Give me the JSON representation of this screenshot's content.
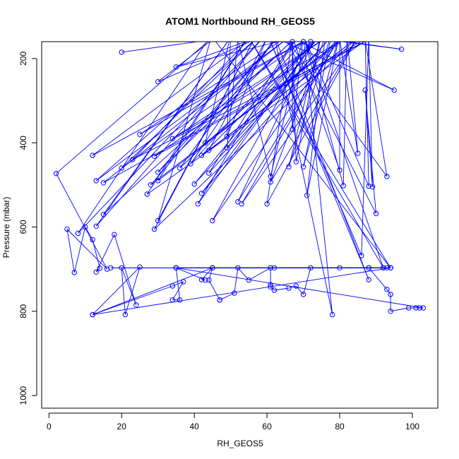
{
  "chart_data": {
    "type": "line",
    "title": "ATOM1 Northbound RH_GEOS5",
    "xlabel": "RH_GEOS5",
    "ylabel": "Pressure (mbar)",
    "xlim": [
      -2,
      107
    ],
    "ylim": [
      1030,
      160
    ],
    "y_axis_reversed": true,
    "grid": false,
    "line_color": "#0000ff",
    "marker": "open-circle",
    "x_ticks": [
      0,
      20,
      40,
      60,
      80,
      100
    ],
    "y_ticks": [
      200,
      400,
      600,
      800,
      1000
    ],
    "x_tick_labels": [
      "0",
      "20",
      "40",
      "60",
      "80",
      "100"
    ],
    "y_tick_labels": [
      "200",
      "400",
      "600",
      "800",
      "1000"
    ],
    "series": [
      {
        "values": [
          [
            20,
            185
          ],
          [
            45,
            155
          ],
          [
            30,
            255
          ],
          [
            62,
            135
          ],
          [
            35,
            220
          ],
          [
            70,
            145
          ],
          [
            97,
            178
          ],
          [
            58,
            135
          ],
          [
            95,
            275
          ],
          [
            66,
            145
          ],
          [
            25,
            380
          ],
          [
            72,
            150
          ],
          [
            12,
            430
          ],
          [
            55,
            155
          ],
          [
            23,
            440
          ],
          [
            88,
            155
          ],
          [
            29,
            432
          ],
          [
            78,
            140
          ],
          [
            34,
            390
          ],
          [
            82,
            150
          ],
          [
            43,
            400
          ],
          [
            50,
            145
          ],
          [
            49,
            385
          ],
          [
            60,
            150
          ],
          [
            44,
            418
          ],
          [
            85,
            150
          ],
          [
            42,
            430
          ],
          [
            75,
            145
          ],
          [
            36,
            460
          ],
          [
            62,
            155
          ],
          [
            39,
            450
          ],
          [
            70,
            160
          ],
          [
            20,
            460
          ],
          [
            58,
            145
          ],
          [
            13,
            490
          ],
          [
            66,
            150
          ],
          [
            15,
            495
          ],
          [
            90,
            140
          ],
          [
            27,
            522
          ],
          [
            55,
            145
          ],
          [
            30,
            490
          ],
          [
            82,
            145
          ],
          [
            28,
            500
          ],
          [
            63,
            150
          ],
          [
            30,
            470
          ],
          [
            68,
            148
          ],
          [
            44,
            472
          ],
          [
            77,
            155
          ],
          [
            40,
            498
          ],
          [
            72,
            160
          ],
          [
            45,
            585
          ],
          [
            80,
            148
          ],
          [
            42,
            520
          ],
          [
            74,
            150
          ],
          [
            41,
            545
          ],
          [
            68,
            150
          ],
          [
            15,
            570
          ],
          [
            50,
            150
          ],
          [
            13,
            598
          ],
          [
            60,
            140
          ],
          [
            8,
            615
          ],
          [
            45,
            140
          ],
          [
            30,
            585
          ],
          [
            57,
            145
          ],
          [
            29,
            605
          ],
          [
            85,
            150
          ],
          [
            53,
            545
          ],
          [
            80,
            150
          ],
          [
            52,
            540
          ],
          [
            73,
            155
          ],
          [
            49,
            412
          ],
          [
            52,
            155
          ],
          [
            61,
            480
          ],
          [
            70,
            145
          ],
          [
            67,
            368
          ],
          [
            67,
            160
          ],
          [
            68,
            445
          ],
          [
            75,
            140
          ],
          [
            66,
            457
          ],
          [
            78,
            135
          ],
          [
            70,
            457
          ],
          [
            80,
            140
          ],
          [
            71,
            525
          ],
          [
            76,
            150
          ],
          [
            61,
            493
          ],
          [
            85,
            148
          ],
          [
            60,
            545
          ],
          [
            67,
            150
          ],
          [
            80,
            465
          ],
          [
            80,
            155
          ],
          [
            85,
            425
          ],
          [
            82,
            145
          ],
          [
            81,
            502
          ],
          [
            70,
            145
          ],
          [
            88,
            503
          ],
          [
            87,
            155
          ],
          [
            93,
            480
          ],
          [
            65,
            150
          ],
          [
            90,
            568
          ],
          [
            87,
            275
          ],
          [
            89,
            505
          ],
          [
            88,
            150
          ],
          [
            86,
            668
          ],
          [
            60,
            140
          ],
          [
            88,
            725
          ],
          [
            62,
            145
          ],
          [
            78,
            808
          ],
          [
            70,
            145
          ],
          [
            92,
            697
          ],
          [
            55,
            150
          ],
          [
            94,
            697
          ],
          [
            45,
            150
          ],
          [
            2,
            473
          ],
          [
            16,
            700
          ],
          [
            5,
            605
          ],
          [
            7,
            708
          ],
          [
            10,
            600
          ],
          [
            12,
            630
          ],
          [
            14,
            698
          ],
          [
            13,
            707
          ],
          [
            18,
            618
          ],
          [
            24,
            785
          ],
          [
            20,
            697
          ],
          [
            21,
            808
          ],
          [
            25,
            695
          ],
          [
            12,
            808
          ],
          [
            34,
            740
          ],
          [
            37,
            730
          ],
          [
            34,
            773
          ],
          [
            36,
            773
          ],
          [
            35,
            697
          ],
          [
            43,
            726
          ],
          [
            42,
            725
          ],
          [
            45,
            697
          ],
          [
            44,
            726
          ],
          [
            47,
            773
          ],
          [
            47,
            773
          ],
          [
            51,
            757
          ],
          [
            52,
            697
          ],
          [
            55,
            726
          ],
          [
            61,
            697
          ],
          [
            61,
            737
          ],
          [
            61,
            742
          ],
          [
            62,
            750
          ],
          [
            66,
            745
          ],
          [
            68,
            740
          ],
          [
            70,
            760
          ],
          [
            72,
            697
          ],
          [
            92,
            697
          ],
          [
            88,
            697
          ],
          [
            93,
            748
          ],
          [
            94,
            760
          ],
          [
            94,
            800
          ],
          [
            99,
            792
          ],
          [
            101,
            792
          ],
          [
            102,
            792
          ],
          [
            103,
            792
          ],
          [
            35,
            697
          ],
          [
            94,
            697
          ],
          [
            12,
            808
          ],
          [
            45,
            697
          ],
          [
            88,
            697
          ],
          [
            35,
            697
          ],
          [
            94,
            697
          ],
          [
            62,
            697
          ],
          [
            93,
            697
          ],
          [
            17,
            697
          ],
          [
            80,
            697
          ],
          [
            94,
            697
          ]
        ]
      }
    ]
  }
}
